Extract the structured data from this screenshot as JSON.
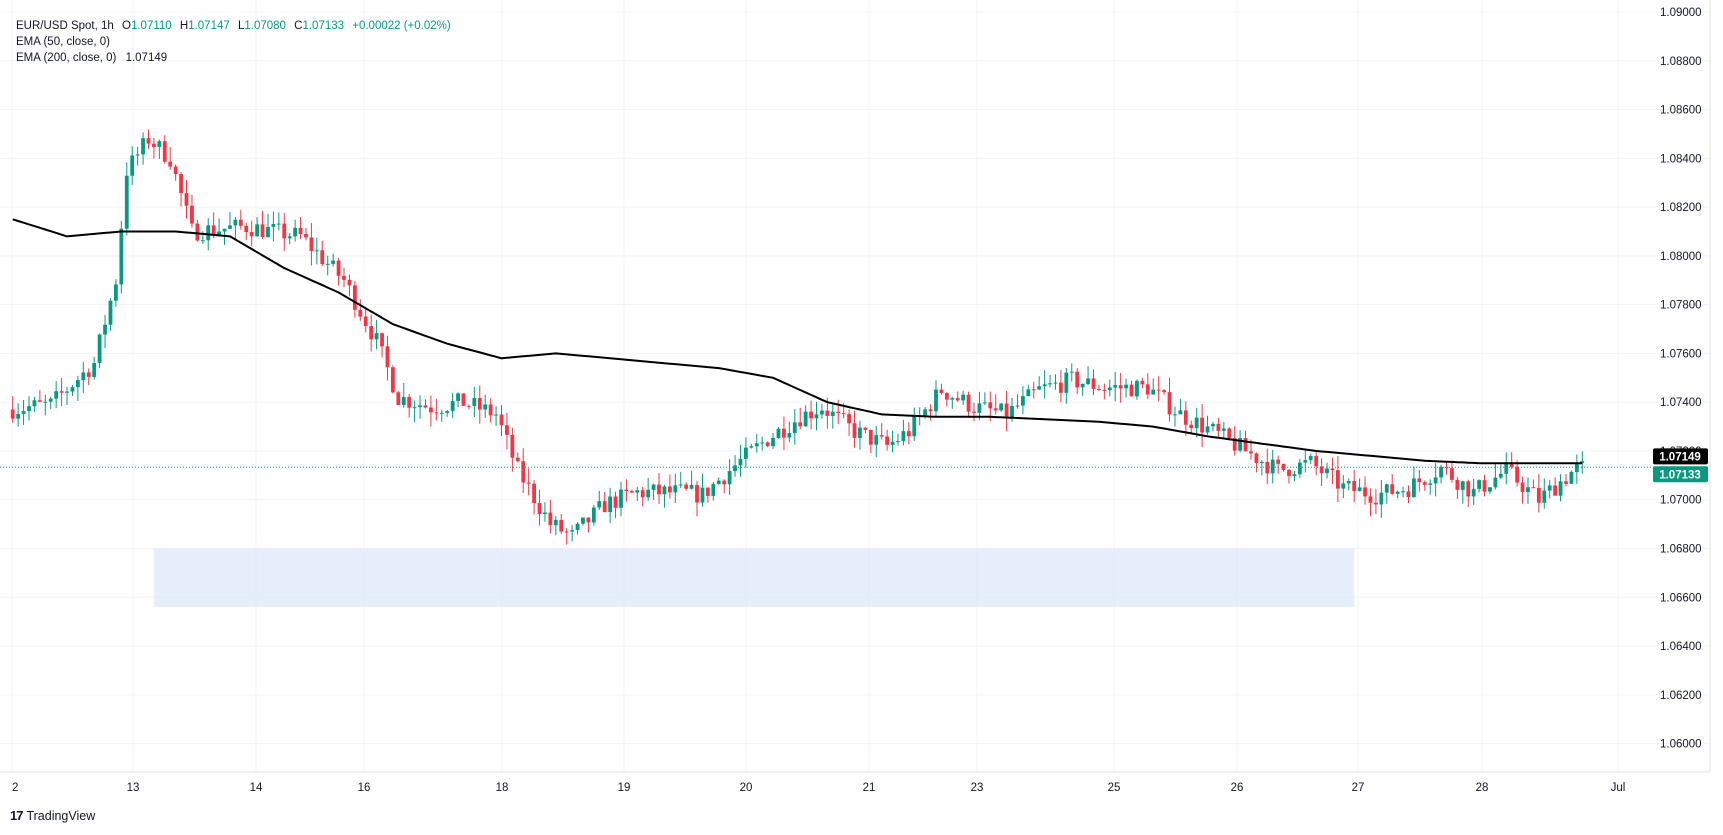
{
  "legend": {
    "symbol": "EUR/USD Spot, 1h",
    "open_label": "O",
    "open": "1.07110",
    "high_label": "H",
    "high": "1.07147",
    "low_label": "L",
    "low": "1.07080",
    "close_label": "C",
    "close": "1.07133",
    "change": "+0.00022 (+0.02%)",
    "ema50_label": "EMA (50, close, 0)",
    "ema200_label": "EMA (200, close, 0)",
    "ema200_value": "1.07149"
  },
  "branding": {
    "logo_mark": "17",
    "logo_text": "TradingView"
  },
  "colors": {
    "up": "#089981",
    "down": "#F23645",
    "ema200": "#000000",
    "zone": "#DCE7FB",
    "grid": "#F0F3FA",
    "axis_text": "#131722",
    "price_line": "#089981",
    "ema_label_bg": "#000000"
  },
  "chart_data": {
    "type": "candlestick",
    "title": "EUR/USD Spot, 1h",
    "ylim": [
      1.059,
      1.09
    ],
    "y_ticks": [
      "1.06000",
      "1.06200",
      "1.06400",
      "1.06600",
      "1.06800",
      "1.07000",
      "1.07200",
      "1.07400",
      "1.07600",
      "1.07800",
      "1.08000",
      "1.08200",
      "1.08400",
      "1.08600",
      "1.08800",
      "1.09000"
    ],
    "x_ticks": [
      "2",
      "13",
      "14",
      "16",
      "18",
      "19",
      "20",
      "21",
      "23",
      "25",
      "26",
      "27",
      "28",
      "Jul"
    ],
    "bar_count": 290,
    "grid": true,
    "current_price": {
      "value": 1.07133,
      "label": "1.07133"
    },
    "ema200_label": {
      "value": 1.07149,
      "label": "1.07149"
    },
    "support_zone": {
      "y_low": 1.0656,
      "y_high": 1.068,
      "bar_start": 26,
      "bar_end": 247
    },
    "price_path": [
      [
        0,
        1.0737
      ],
      [
        8,
        1.0739
      ],
      [
        16,
        1.0756
      ],
      [
        20,
        1.079
      ],
      [
        22,
        1.0835
      ],
      [
        26,
        1.0848
      ],
      [
        30,
        1.084
      ],
      [
        34,
        1.081
      ],
      [
        44,
        1.0812
      ],
      [
        54,
        1.0808
      ],
      [
        62,
        1.079
      ],
      [
        68,
        1.0765
      ],
      [
        72,
        1.0742
      ],
      [
        78,
        1.0738
      ],
      [
        84,
        1.074
      ],
      [
        90,
        1.0735
      ],
      [
        94,
        1.0712
      ],
      [
        100,
        1.069
      ],
      [
        104,
        1.0685
      ],
      [
        110,
        1.0698
      ],
      [
        116,
        1.0703
      ],
      [
        124,
        1.0703
      ],
      [
        128,
        1.0702
      ],
      [
        134,
        1.0714
      ],
      [
        140,
        1.0725
      ],
      [
        146,
        1.0734
      ],
      [
        150,
        1.0738
      ],
      [
        156,
        1.0728
      ],
      [
        162,
        1.0722
      ],
      [
        166,
        1.0728
      ],
      [
        172,
        1.0745
      ],
      [
        178,
        1.0738
      ],
      [
        184,
        1.0735
      ],
      [
        190,
        1.0745
      ],
      [
        196,
        1.0749
      ],
      [
        202,
        1.0746
      ],
      [
        210,
        1.0746
      ],
      [
        216,
        1.0735
      ],
      [
        222,
        1.0728
      ],
      [
        228,
        1.072
      ],
      [
        234,
        1.0712
      ],
      [
        240,
        1.0715
      ],
      [
        246,
        1.0705
      ],
      [
        252,
        1.0702
      ],
      [
        258,
        1.0705
      ],
      [
        264,
        1.0713
      ],
      [
        270,
        1.0703
      ],
      [
        276,
        1.0712
      ],
      [
        282,
        1.07
      ],
      [
        289,
        1.0713
      ]
    ],
    "ema200_path": [
      [
        0,
        1.0815
      ],
      [
        10,
        1.0808
      ],
      [
        20,
        1.081
      ],
      [
        30,
        1.081
      ],
      [
        40,
        1.0808
      ],
      [
        50,
        1.0795
      ],
      [
        60,
        1.0785
      ],
      [
        70,
        1.0772
      ],
      [
        80,
        1.0764
      ],
      [
        90,
        1.0758
      ],
      [
        100,
        1.076
      ],
      [
        110,
        1.0758
      ],
      [
        120,
        1.0756
      ],
      [
        130,
        1.0754
      ],
      [
        140,
        1.075
      ],
      [
        150,
        1.074
      ],
      [
        160,
        1.0735
      ],
      [
        170,
        1.0734
      ],
      [
        180,
        1.0734
      ],
      [
        190,
        1.0733
      ],
      [
        200,
        1.0732
      ],
      [
        210,
        1.073
      ],
      [
        220,
        1.0726
      ],
      [
        230,
        1.0723
      ],
      [
        240,
        1.072
      ],
      [
        250,
        1.0718
      ],
      [
        260,
        1.0716
      ],
      [
        270,
        1.0715
      ],
      [
        280,
        1.0715
      ],
      [
        289,
        1.0715
      ]
    ]
  }
}
